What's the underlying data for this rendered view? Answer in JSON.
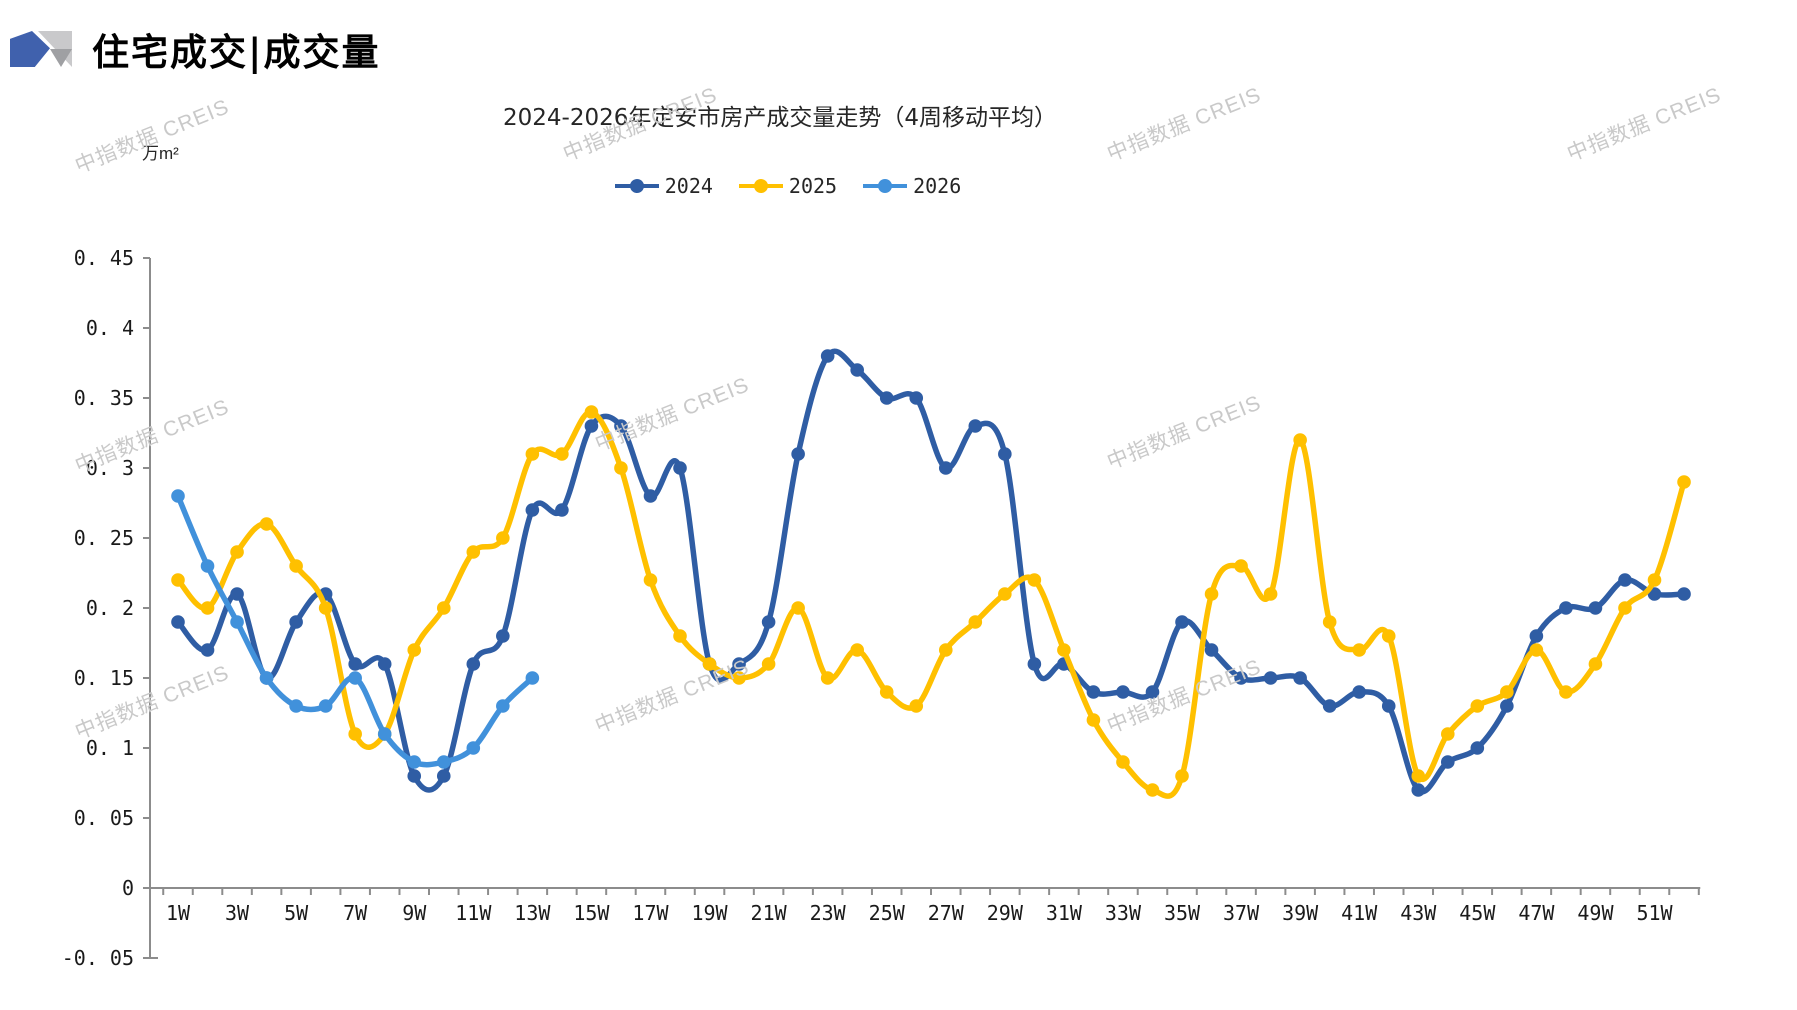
{
  "header": {
    "title": "住宅成交|成交量"
  },
  "watermark": {
    "text": "中指数据 CREIS"
  },
  "chart_data": {
    "type": "line",
    "title": "2024-2026年定安市房产成交量走势（4周移动平均）",
    "ylabel_unit": "万m²",
    "xlabel": "",
    "weeks_total": 52,
    "x_tick_labels": [
      "1W",
      "3W",
      "5W",
      "7W",
      "9W",
      "11W",
      "13W",
      "15W",
      "17W",
      "19W",
      "21W",
      "23W",
      "25W",
      "27W",
      "29W",
      "31W",
      "33W",
      "35W",
      "37W",
      "39W",
      "41W",
      "43W",
      "45W",
      "47W",
      "49W",
      "51W"
    ],
    "ylim": [
      -0.05,
      0.45
    ],
    "ytick_step": 0.05,
    "grid": false,
    "legend_position": "top-center",
    "axis_color": "#8c8c8c",
    "series": [
      {
        "name": "2024",
        "color": "#2F5DA4",
        "values": [
          0.19,
          0.17,
          0.21,
          0.15,
          0.19,
          0.21,
          0.16,
          0.16,
          0.08,
          0.08,
          0.16,
          0.18,
          0.27,
          0.27,
          0.33,
          0.33,
          0.28,
          0.3,
          0.16,
          0.16,
          0.19,
          0.31,
          0.38,
          0.37,
          0.35,
          0.35,
          0.3,
          0.33,
          0.31,
          0.16,
          0.16,
          0.14,
          0.14,
          0.14,
          0.19,
          0.17,
          0.15,
          0.15,
          0.15,
          0.13,
          0.14,
          0.13,
          0.07,
          0.09,
          0.1,
          0.13,
          0.18,
          0.2,
          0.2,
          0.22,
          0.21,
          0.21
        ]
      },
      {
        "name": "2025",
        "color": "#FFC000",
        "values": [
          0.22,
          0.2,
          0.24,
          0.26,
          0.23,
          0.2,
          0.11,
          0.11,
          0.17,
          0.2,
          0.24,
          0.25,
          0.31,
          0.31,
          0.34,
          0.3,
          0.22,
          0.18,
          0.16,
          0.15,
          0.16,
          0.2,
          0.15,
          0.17,
          0.14,
          0.13,
          0.17,
          0.19,
          0.21,
          0.22,
          0.17,
          0.12,
          0.09,
          0.07,
          0.08,
          0.21,
          0.23,
          0.21,
          0.32,
          0.19,
          0.17,
          0.18,
          0.08,
          0.11,
          0.13,
          0.14,
          0.17,
          0.14,
          0.16,
          0.2,
          0.22,
          0.29
        ]
      },
      {
        "name": "2026",
        "color": "#4191DB",
        "values": [
          0.28,
          0.23,
          0.19,
          0.15,
          0.13,
          0.13,
          0.15,
          0.11,
          0.09,
          0.09,
          0.1,
          0.13,
          0.15
        ]
      }
    ]
  }
}
